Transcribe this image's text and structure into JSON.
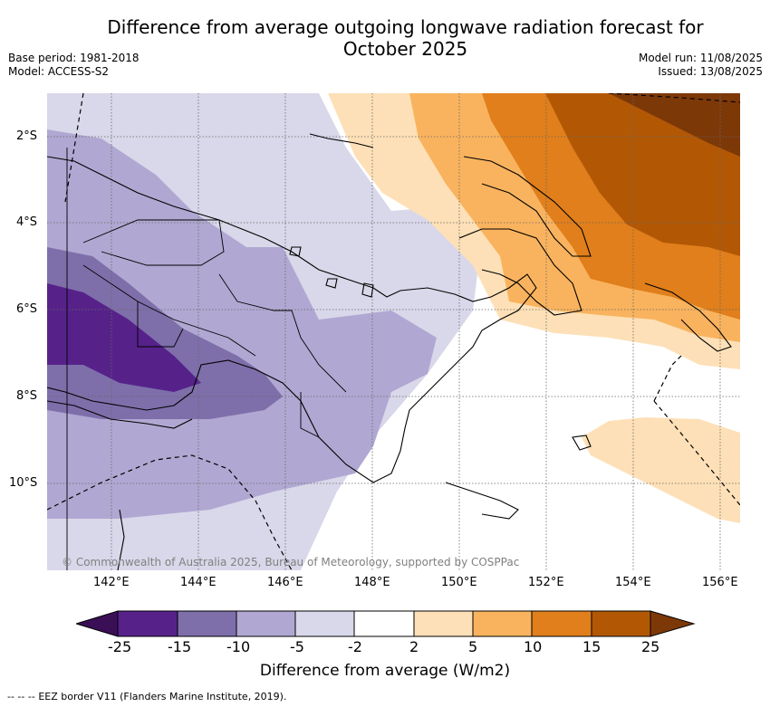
{
  "header": {
    "title_line1": "Difference from average outgoing longwave radiation forecast for",
    "title_line2": "October 2025",
    "base_period": "Base period: 1981-2018",
    "model": "Model: ACCESS-S2",
    "model_run": "Model run: 11/08/2025",
    "issued": "Issued: 13/08/2025"
  },
  "map": {
    "region": "Papua New Guinea",
    "lon_range": [
      140.5,
      156.5
    ],
    "lat_range": [
      -12.0,
      -1.0
    ],
    "x_ticks": [
      "142°E",
      "144°E",
      "146°E",
      "148°E",
      "150°E",
      "152°E",
      "154°E",
      "156°E"
    ],
    "y_ticks": [
      "2°S",
      "4°S",
      "6°S",
      "8°S",
      "10°S"
    ],
    "copyright": "© Commonwealth of Australia 2025, Bureau of Meteorology, supported by COSPPac"
  },
  "legend": {
    "title": "Difference from average (W/m2)",
    "labels": [
      "-25",
      "-15",
      "-10",
      "-5",
      "-2",
      "2",
      "5",
      "10",
      "15",
      "25"
    ],
    "colors": {
      "lt_-25": "#3b0f55",
      "-25_-15": "#56228a",
      "-15_-10": "#7e6faa",
      "-10_-5": "#b0a8d2",
      "-5_-2": "#d9d8ea",
      "-2_2": "#ffffff",
      "2_5": "#fde0b7",
      "5_10": "#f9b35e",
      "10_15": "#e07f1b",
      "15_25": "#b25805",
      "gt_25": "#7d3808"
    }
  },
  "footer": {
    "eez_legend_symbol": "-- -- --",
    "eez_legend_text": "EEZ border V11 (Flanders Marine Institute, 2019)."
  }
}
